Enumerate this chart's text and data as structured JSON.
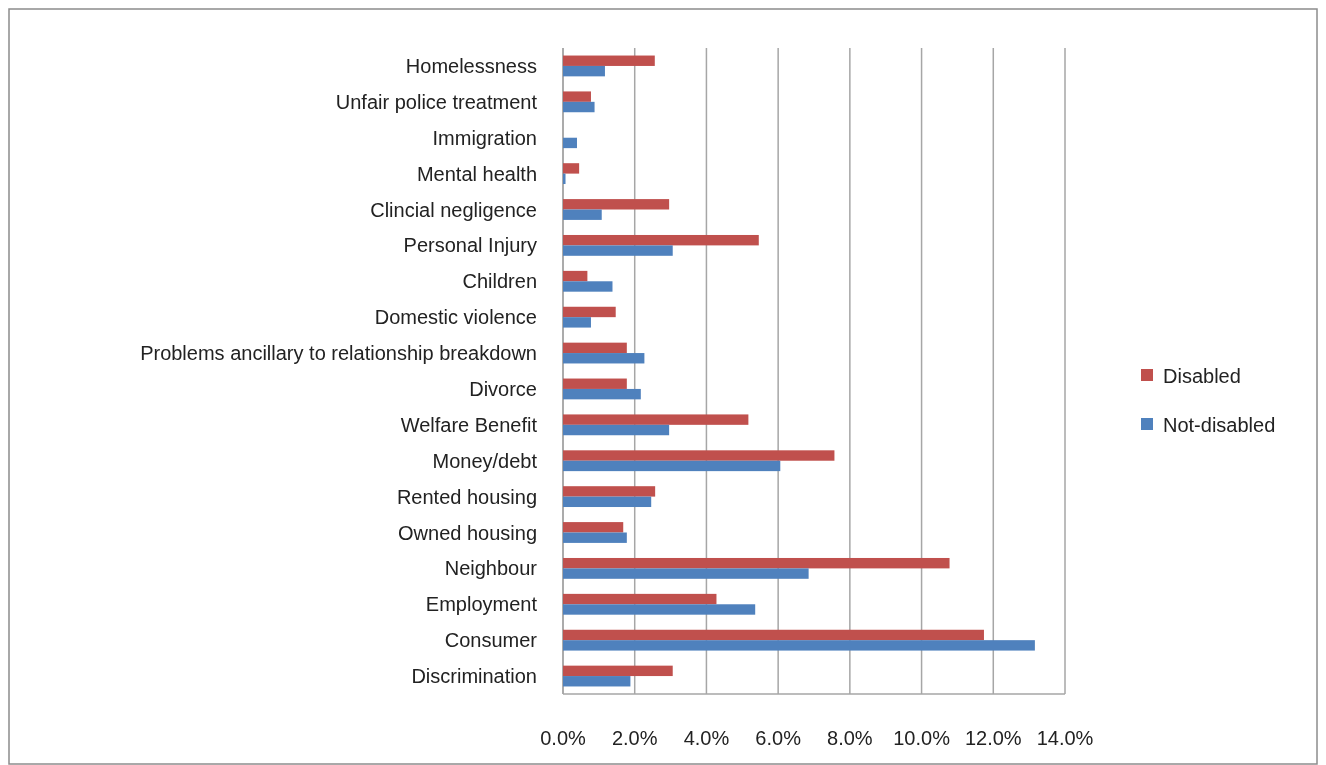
{
  "chart_data": {
    "type": "bar",
    "orientation": "horizontal",
    "categories": [
      "Homelessness",
      "Unfair police treatment",
      "Immigration",
      "Mental health",
      "Clincial negligence",
      "Personal Injury",
      "Children",
      "Domestic violence",
      "Problems ancillary to relationship breakdown",
      "Divorce",
      "Welfare Benefit",
      "Money/debt",
      "Rented housing",
      "Owned housing",
      "Neighbour",
      "Employment",
      "Consumer",
      "Discrimination"
    ],
    "series": [
      {
        "name": "Disabled",
        "color": "#c0504d",
        "values": [
          2.56,
          0.78,
          0,
          0.45,
          2.96,
          5.46,
          0.68,
          1.47,
          1.78,
          1.78,
          5.17,
          7.57,
          2.57,
          1.68,
          10.78,
          4.28,
          11.74,
          3.06
        ]
      },
      {
        "name": "Not-disabled",
        "color": "#4f81bd",
        "values": [
          1.17,
          0.88,
          0.39,
          0.07,
          1.08,
          3.06,
          1.38,
          0.78,
          2.27,
          2.17,
          2.96,
          6.06,
          2.46,
          1.78,
          6.85,
          5.36,
          13.16,
          1.88
        ]
      }
    ],
    "xlim": [
      0,
      14
    ],
    "xticks": [
      {
        "value": 0,
        "label": "0.0%"
      },
      {
        "value": 2,
        "label": "2.0%"
      },
      {
        "value": 4,
        "label": "4.0%"
      },
      {
        "value": 6,
        "label": "6.0%"
      },
      {
        "value": 8,
        "label": "8.0%"
      },
      {
        "value": 10,
        "label": "10.0%"
      },
      {
        "value": 12,
        "label": "12.0%"
      },
      {
        "value": 14,
        "label": "14.0%"
      }
    ],
    "grid": "x",
    "legend": "right"
  }
}
